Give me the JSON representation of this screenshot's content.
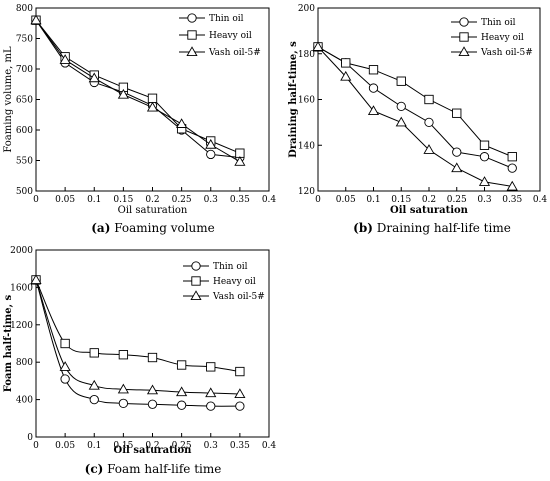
{
  "chart_data": [
    {
      "type": "line",
      "caption_label": "(a)",
      "caption_text": "Foaming volume",
      "xlabel": "Oil saturation",
      "ylabel": "Foaming volume, mL",
      "xlim": [
        0,
        0.4
      ],
      "ylim": [
        500,
        800
      ],
      "xticks": [
        0,
        0.05,
        0.1,
        0.15,
        0.2,
        0.25,
        0.3,
        0.35,
        0.4
      ],
      "xtick_labels": [
        "0",
        "0.05",
        "0.1",
        "0.15",
        "0.2",
        "0.25",
        "0.3",
        "0.35",
        "0.4"
      ],
      "yticks": [
        500,
        550,
        600,
        650,
        700,
        750,
        800
      ],
      "ytick_labels": [
        "500",
        "550",
        "600",
        "650",
        "700",
        "750",
        "800"
      ],
      "legend_position": "top-right",
      "x": [
        0,
        0.05,
        0.1,
        0.15,
        0.2,
        0.25,
        0.3,
        0.35
      ],
      "series": [
        {
          "name": "Thin oil",
          "marker": "circle",
          "values": [
            780,
            710,
            678,
            662,
            640,
            600,
            560,
            555
          ]
        },
        {
          "name": "Heavy  oil",
          "marker": "square",
          "values": [
            780,
            720,
            690,
            670,
            652,
            602,
            582,
            562
          ]
        },
        {
          "name": "Vash oil-5#",
          "marker": "triangle",
          "values": [
            780,
            715,
            685,
            658,
            637,
            610,
            576,
            548
          ]
        }
      ]
    },
    {
      "type": "line",
      "caption_label": "(b)",
      "caption_text": "Draining half-life time",
      "xlabel": "Oil saturation",
      "ylabel": "Draining half-time, s",
      "xlim": [
        0,
        0.4
      ],
      "ylim": [
        120,
        200
      ],
      "xticks": [
        0,
        0.05,
        0.1,
        0.15,
        0.2,
        0.25,
        0.3,
        0.35,
        0.4
      ],
      "xtick_labels": [
        "0",
        "0.05",
        "0.1",
        "0.15",
        "0.2",
        "0.25",
        "0.3",
        "0.35",
        "0.4"
      ],
      "yticks": [
        120,
        140,
        160,
        180,
        200
      ],
      "ytick_labels": [
        "120",
        "140",
        "160",
        "180",
        "200"
      ],
      "legend_position": "top-right",
      "x": [
        0,
        0.05,
        0.1,
        0.15,
        0.2,
        0.25,
        0.3,
        0.35
      ],
      "series": [
        {
          "name": "Thin oil",
          "marker": "circle",
          "values": [
            183,
            176,
            165,
            157,
            150,
            137,
            135,
            130
          ]
        },
        {
          "name": "Heavy  oil",
          "marker": "square",
          "values": [
            183,
            176,
            173,
            168,
            160,
            154,
            140,
            135
          ]
        },
        {
          "name": "Vash oil-5#",
          "marker": "triangle",
          "values": [
            183,
            170,
            155,
            150,
            138,
            130,
            124,
            122
          ]
        }
      ]
    },
    {
      "type": "line",
      "caption_label": "(c)",
      "caption_text": "Foam half-life time",
      "xlabel": "Oil saturation",
      "ylabel": "Foam half-time, s",
      "xlim": [
        0,
        0.4
      ],
      "ylim": [
        0,
        2000
      ],
      "xticks": [
        0,
        0.05,
        0.1,
        0.15,
        0.2,
        0.25,
        0.3,
        0.35,
        0.4
      ],
      "xtick_labels": [
        "0",
        "0.05",
        "0.1",
        "0.15",
        "0.2",
        "0.25",
        "0.3",
        "0.35",
        "0.4"
      ],
      "yticks": [
        0,
        400,
        800,
        1200,
        1600,
        2000
      ],
      "ytick_labels": [
        "0",
        "400",
        "800",
        "1200",
        "1600",
        "2000"
      ],
      "legend_position": "top-right",
      "x": [
        0,
        0.05,
        0.1,
        0.15,
        0.2,
        0.25,
        0.3,
        0.35
      ],
      "series": [
        {
          "name": "Thin oil",
          "marker": "circle",
          "values": [
            1680,
            620,
            400,
            360,
            350,
            340,
            330,
            330
          ]
        },
        {
          "name": "Heavy  oil",
          "marker": "square",
          "values": [
            1680,
            1000,
            900,
            880,
            850,
            770,
            750,
            700
          ]
        },
        {
          "name": "Vash oil-5#",
          "marker": "triangle",
          "values": [
            1680,
            750,
            550,
            510,
            500,
            480,
            470,
            460
          ]
        }
      ]
    }
  ]
}
